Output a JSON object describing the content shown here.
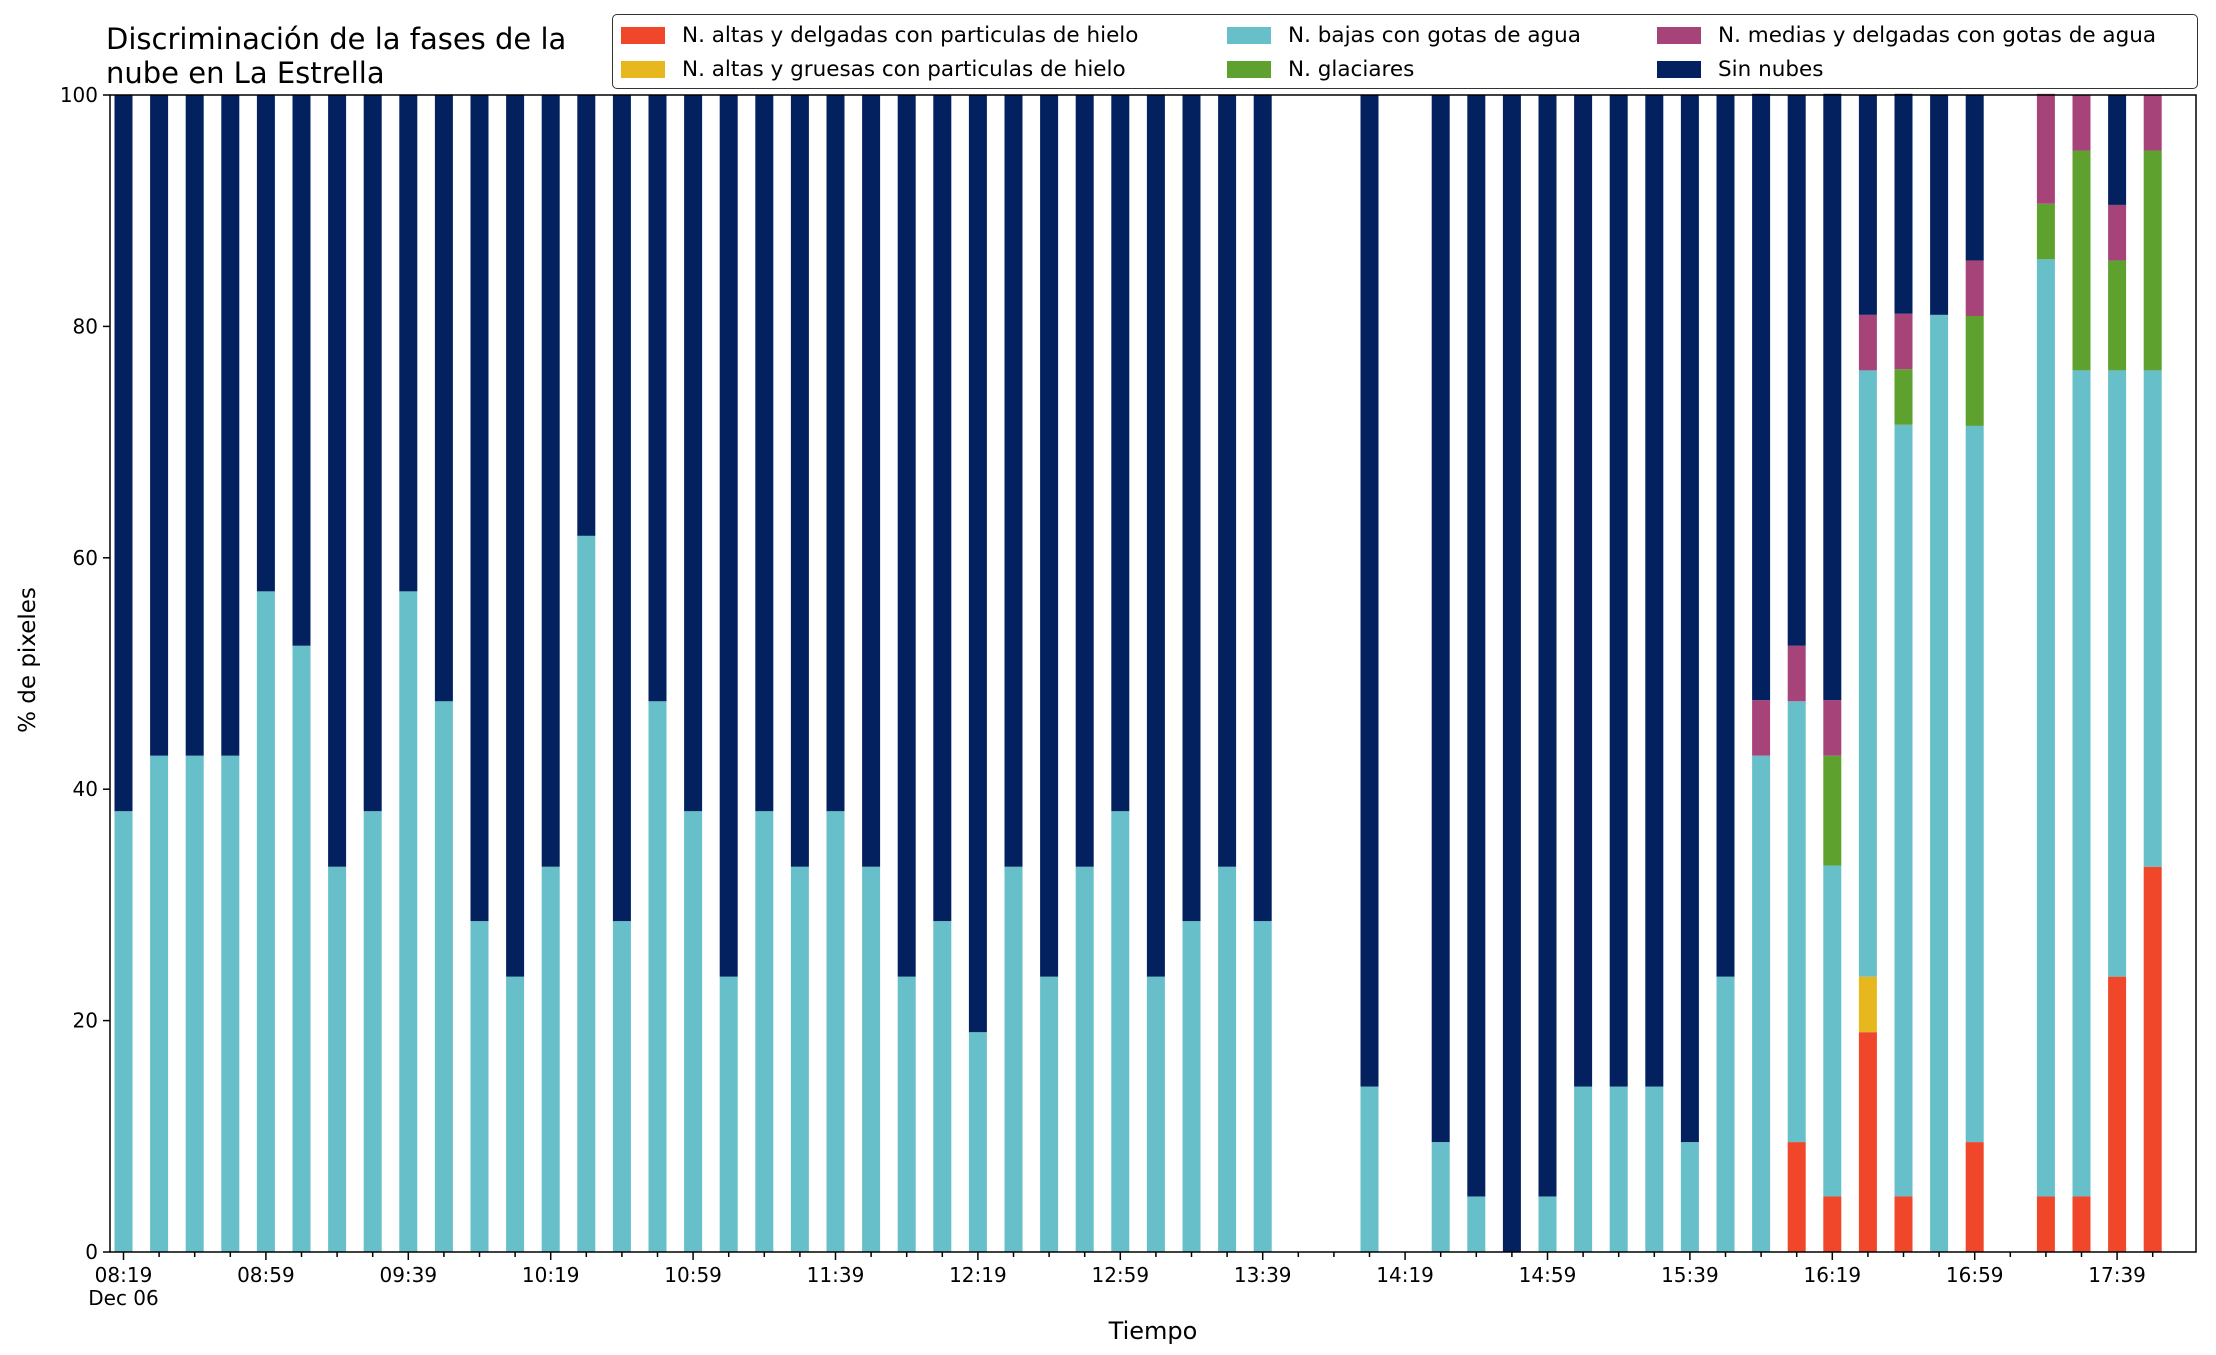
{
  "chart_data": {
    "type": "bar",
    "stacked": true,
    "title": "Discriminación de la fases de la\nnube en La Estrella",
    "xlabel": "Tiempo",
    "ylabel": "% de pixeles",
    "ylim": [
      0,
      100
    ],
    "yticks": [
      0,
      20,
      40,
      60,
      80,
      100
    ],
    "grid": false,
    "legend_position": "top-right",
    "xtick_labels": [
      {
        "index": 0,
        "label": "08:19",
        "sublabel": "Dec 06"
      },
      {
        "index": 4,
        "label": "08:59"
      },
      {
        "index": 8,
        "label": "09:39"
      },
      {
        "index": 12,
        "label": "10:19"
      },
      {
        "index": 16,
        "label": "10:59"
      },
      {
        "index": 20,
        "label": "11:39"
      },
      {
        "index": 24,
        "label": "12:19"
      },
      {
        "index": 28,
        "label": "12:59"
      },
      {
        "index": 32,
        "label": "13:39"
      },
      {
        "index": 36,
        "label": "14:19"
      },
      {
        "index": 40,
        "label": "14:59"
      },
      {
        "index": 44,
        "label": "15:39"
      },
      {
        "index": 48,
        "label": "16:19"
      },
      {
        "index": 52,
        "label": "16:59"
      },
      {
        "index": 56,
        "label": "17:39"
      }
    ],
    "categories": [
      "08:19",
      "08:29",
      "08:39",
      "08:49",
      "08:59",
      "09:09",
      "09:19",
      "09:29",
      "09:39",
      "09:49",
      "09:59",
      "10:09",
      "10:19",
      "10:29",
      "10:39",
      "10:49",
      "10:59",
      "11:09",
      "11:19",
      "11:29",
      "11:39",
      "11:49",
      "11:59",
      "12:09",
      "12:19",
      "12:29",
      "12:39",
      "12:49",
      "12:59",
      "13:09",
      "13:19",
      "13:29",
      "13:39",
      "13:49",
      "13:59",
      "14:09",
      "14:19",
      "14:29",
      "14:39",
      "14:49",
      "14:59",
      "15:09",
      "15:19",
      "15:29",
      "15:39",
      "15:49",
      "15:59",
      "16:09",
      "16:19",
      "16:29",
      "16:39",
      "16:49",
      "16:59",
      "17:09",
      "17:19",
      "17:29",
      "17:39",
      "17:49"
    ],
    "series": [
      {
        "name": "N. altas y delgadas con particulas de hielo",
        "color": "#f0462a",
        "values": [
          0,
          0,
          0,
          0,
          0,
          0,
          0,
          0,
          0,
          0,
          0,
          0,
          0,
          0,
          0,
          0,
          0,
          0,
          0,
          0,
          0,
          0,
          0,
          0,
          0,
          0,
          0,
          0,
          0,
          0,
          0,
          0,
          0,
          0,
          0,
          0,
          0,
          0,
          0,
          0,
          0,
          0,
          0,
          0,
          0,
          0,
          0,
          9.5,
          4.8,
          19,
          4.8,
          0,
          9.5,
          0,
          4.8,
          4.8,
          23.8,
          33.3
        ]
      },
      {
        "name": "N. altas y gruesas con particulas de hielo",
        "color": "#e6b81e",
        "values": [
          0,
          0,
          0,
          0,
          0,
          0,
          0,
          0,
          0,
          0,
          0,
          0,
          0,
          0,
          0,
          0,
          0,
          0,
          0,
          0,
          0,
          0,
          0,
          0,
          0,
          0,
          0,
          0,
          0,
          0,
          0,
          0,
          0,
          0,
          0,
          0,
          0,
          0,
          0,
          0,
          0,
          0,
          0,
          0,
          0,
          0,
          0,
          0,
          0,
          4.8,
          0,
          0,
          0,
          0,
          0,
          0,
          0,
          0
        ]
      },
      {
        "name": "N. bajas con gotas de agua",
        "color": "#67bfca",
        "values": [
          38.1,
          42.9,
          42.9,
          42.9,
          57.1,
          52.4,
          33.3,
          38.1,
          57.1,
          47.6,
          28.6,
          23.8,
          33.3,
          61.9,
          28.6,
          47.6,
          38.1,
          23.8,
          38.1,
          33.3,
          38.1,
          33.3,
          23.8,
          28.6,
          19,
          33.3,
          23.8,
          33.3,
          38.1,
          23.8,
          28.6,
          33.3,
          28.6,
          0,
          0,
          14.3,
          0,
          9.5,
          4.8,
          0,
          4.8,
          14.3,
          14.3,
          14.3,
          9.5,
          23.8,
          42.9,
          38.1,
          28.6,
          52.4,
          66.7,
          81,
          61.9,
          0,
          81,
          71.4,
          52.4,
          42.9
        ]
      },
      {
        "name": "N. glaciares",
        "color": "#5ea12e",
        "values": [
          0,
          0,
          0,
          0,
          0,
          0,
          0,
          0,
          0,
          0,
          0,
          0,
          0,
          0,
          0,
          0,
          0,
          0,
          0,
          0,
          0,
          0,
          0,
          0,
          0,
          0,
          0,
          0,
          0,
          0,
          0,
          0,
          0,
          0,
          0,
          0,
          0,
          0,
          0,
          0,
          0,
          0,
          0,
          0,
          0,
          0,
          0,
          0,
          9.5,
          0,
          4.8,
          0,
          9.5,
          0,
          4.8,
          19,
          9.5,
          19
        ]
      },
      {
        "name": "N. medias y delgadas con gotas de agua",
        "color": "#a6447a",
        "values": [
          0,
          0,
          0,
          0,
          0,
          0,
          0,
          0,
          0,
          0,
          0,
          0,
          0,
          0,
          0,
          0,
          0,
          0,
          0,
          0,
          0,
          0,
          0,
          0,
          0,
          0,
          0,
          0,
          0,
          0,
          0,
          0,
          0,
          0,
          0,
          0,
          0,
          0,
          0,
          0,
          0,
          0,
          0,
          0,
          0,
          0,
          4.8,
          4.8,
          4.8,
          4.8,
          4.8,
          0,
          4.8,
          0,
          9.5,
          4.8,
          4.8,
          4.8
        ]
      },
      {
        "name": "Sin nubes",
        "color": "#03205f",
        "values": [
          61.9,
          57.1,
          57.1,
          57.1,
          42.9,
          47.6,
          66.7,
          61.9,
          42.9,
          52.4,
          71.4,
          76.2,
          66.7,
          38.1,
          71.4,
          52.4,
          61.9,
          76.2,
          61.9,
          66.7,
          61.9,
          66.7,
          76.2,
          71.4,
          81,
          66.7,
          76.2,
          66.7,
          61.9,
          76.2,
          71.4,
          66.7,
          71.4,
          0,
          0,
          85.7,
          0,
          90.5,
          95.2,
          100,
          95.2,
          85.7,
          85.7,
          85.7,
          90.5,
          76.2,
          52.4,
          47.6,
          52.4,
          19,
          19,
          19,
          14.3,
          0,
          0,
          0,
          9.5,
          0
        ]
      }
    ]
  }
}
